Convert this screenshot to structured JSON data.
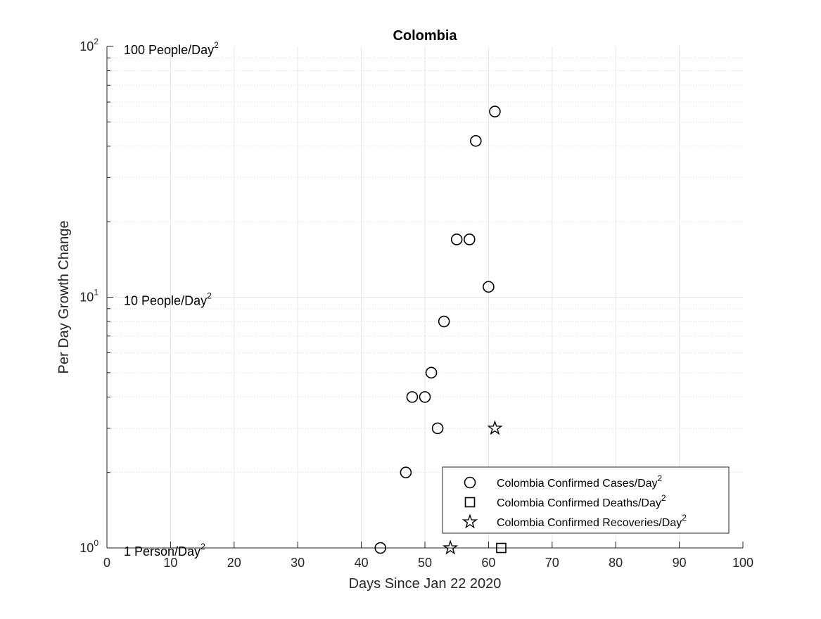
{
  "chart_data": {
    "type": "scatter",
    "title": "Colombia",
    "xlabel": "Days Since Jan 22 2020",
    "ylabel": "Per Day Growth Change",
    "xlim": [
      0,
      100
    ],
    "ylim": [
      1,
      100
    ],
    "yscale": "log",
    "grid": true,
    "x_ticks": [
      0,
      10,
      20,
      30,
      40,
      50,
      60,
      70,
      80,
      90,
      100
    ],
    "x_tick_labels": [
      "0",
      "10",
      "20",
      "30",
      "40",
      "50",
      "60",
      "70",
      "80",
      "90",
      "100"
    ],
    "y_ticks": [
      1,
      10,
      100
    ],
    "y_tick_labels": [
      {
        "base": "10",
        "exp": "0"
      },
      {
        "base": "10",
        "exp": "1"
      },
      {
        "base": "10",
        "exp": "2"
      }
    ],
    "annotations": [
      {
        "y": 100,
        "text": "100 People/Day",
        "sup": "2"
      },
      {
        "y": 10,
        "text": "10 People/Day",
        "sup": "2"
      },
      {
        "y": 1,
        "text": "1 Person/Day",
        "sup": "2"
      }
    ],
    "legend_position": "bottom-right",
    "series": [
      {
        "name": "Colombia Confirmed Cases/Day",
        "name_sup": "2",
        "marker": "circle",
        "points": [
          {
            "x": 43,
            "y": 1
          },
          {
            "x": 47,
            "y": 2
          },
          {
            "x": 48,
            "y": 4
          },
          {
            "x": 50,
            "y": 4
          },
          {
            "x": 51,
            "y": 5
          },
          {
            "x": 52,
            "y": 3
          },
          {
            "x": 53,
            "y": 8
          },
          {
            "x": 55,
            "y": 17
          },
          {
            "x": 57,
            "y": 17
          },
          {
            "x": 58,
            "y": 42
          },
          {
            "x": 60,
            "y": 11
          },
          {
            "x": 61,
            "y": 55
          }
        ]
      },
      {
        "name": "Colombia Confirmed Deaths/Day",
        "name_sup": "2",
        "marker": "square",
        "points": [
          {
            "x": 62,
            "y": 1
          }
        ]
      },
      {
        "name": "Colombia Confirmed Recoveries/Day",
        "name_sup": "2",
        "marker": "star",
        "points": [
          {
            "x": 54,
            "y": 1
          },
          {
            "x": 61,
            "y": 3
          }
        ]
      }
    ]
  }
}
